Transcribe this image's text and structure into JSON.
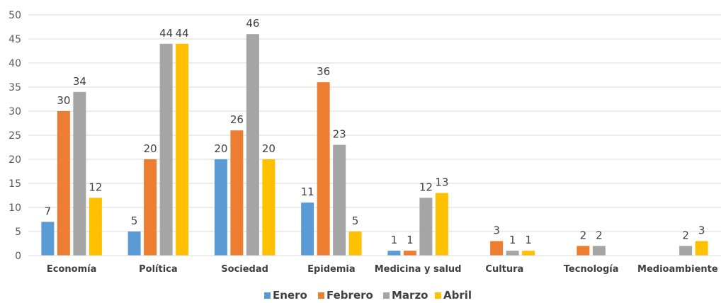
{
  "chart_data": {
    "type": "bar",
    "title": "",
    "xlabel": "",
    "ylabel": "",
    "ylim": [
      0,
      50
    ],
    "yticks": [
      0,
      5,
      10,
      15,
      20,
      25,
      30,
      35,
      40,
      45,
      50
    ],
    "grid": true,
    "legend_position": "bottom",
    "categories": [
      "Economía",
      "Política",
      "Sociedad",
      "Epidemia",
      "Medicina y salud",
      "Cultura",
      "Tecnología",
      "Medioambiente"
    ],
    "series": [
      {
        "name": "Enero",
        "color": "#5B9BD5",
        "values": [
          7,
          5,
          20,
          11,
          1,
          null,
          null,
          null
        ]
      },
      {
        "name": "Febrero",
        "color": "#ED7D31",
        "values": [
          30,
          20,
          26,
          36,
          1,
          3,
          2,
          null
        ]
      },
      {
        "name": "Marzo",
        "color": "#A5A5A5",
        "values": [
          34,
          44,
          46,
          23,
          12,
          1,
          2,
          2
        ]
      },
      {
        "name": "Abril",
        "color": "#FFC000",
        "values": [
          12,
          44,
          20,
          5,
          13,
          1,
          null,
          3
        ]
      }
    ]
  }
}
